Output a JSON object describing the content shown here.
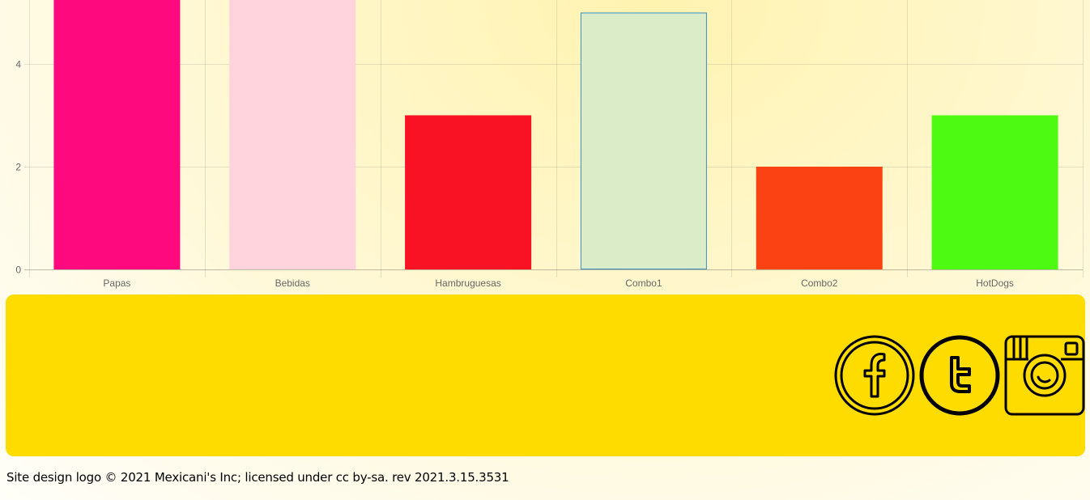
{
  "chart_data": {
    "type": "bar",
    "categories": [
      "Papas",
      "Bebidas",
      "Hambruguesas",
      "Combo1",
      "Combo2",
      "HotDogs"
    ],
    "values": [
      6,
      6,
      3,
      5,
      2,
      3
    ],
    "bar_colors": [
      "#ff0a7e",
      "#ffd4dc",
      "#f91124",
      "#daecc8",
      "#fb4212",
      "#4dfb12"
    ],
    "bar_borders": [
      "",
      "",
      "",
      "#3a8fc5",
      "",
      ""
    ],
    "y_ticks": [
      0,
      2,
      4
    ],
    "ylim": [
      0,
      5.25
    ],
    "grid": true,
    "title": "",
    "xlabel": "",
    "ylabel": ""
  },
  "footer": {
    "panel_color": "#ffdc00",
    "social_icons": [
      {
        "name": "facebook-icon",
        "glyph": "f"
      },
      {
        "name": "twitter-icon",
        "glyph": "t"
      },
      {
        "name": "instagram-icon",
        "glyph": ""
      }
    ],
    "copyright": "Site design logo © 2021 Mexicani's Inc; licensed under cc by-sa. rev 2021.3.15.3531"
  }
}
